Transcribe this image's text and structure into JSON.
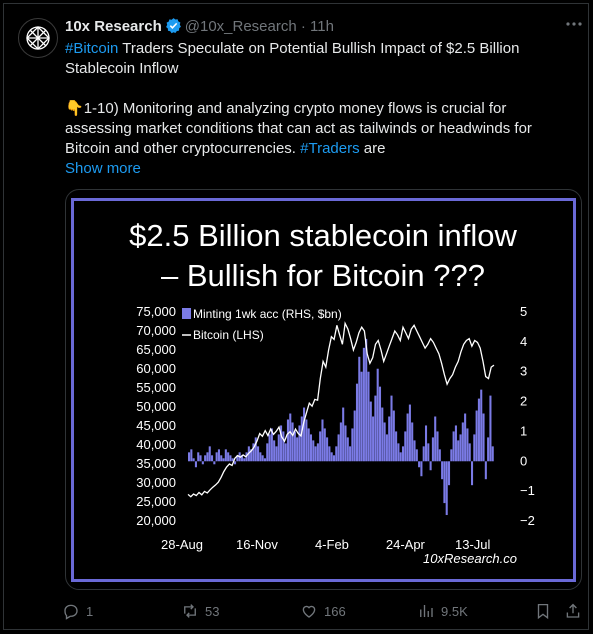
{
  "tweet": {
    "author_name": "10x Research",
    "handle": "@10x_Research",
    "separator": "·",
    "time": "11h",
    "text": {
      "line1_tag": "#Bitcoin",
      "line1_rest": " Traders Speculate on Potential Bullish Impact of $2.5 Billion Stablecoin Inflow",
      "para2_emoji": "👇",
      "para2_text": "1-10) Monitoring and analyzing crypto money flows is crucial for assessing market conditions that can act as tailwinds or headwinds for Bitcoin and other cryptocurrencies. ",
      "para2_tag": "#Traders",
      "para2_tail": " are",
      "show_more": "Show more"
    },
    "actions": {
      "replies": "1",
      "reposts": "53",
      "likes": "166",
      "views": "9.5K"
    },
    "icons": [
      "verified-badge-icon",
      "more-icon",
      "reply-icon",
      "repost-icon",
      "like-icon",
      "views-icon",
      "bookmark-icon",
      "share-icon"
    ],
    "colors": {
      "link": "#1d9bf0",
      "muted": "#71767b",
      "panel_border": "#6a69d6",
      "bar": "#7b7be6"
    }
  },
  "chart_data": {
    "type": "bar",
    "title_line1": "$2.5 Billion stablecoin inflow",
    "title_line2": "– Bullish for Bitcoin ???",
    "watermark": "10xResearch.co",
    "legend": [
      {
        "name": "Minting 1wk acc (RHS, $bn)",
        "kind": "bar",
        "color": "#7b7be6"
      },
      {
        "name": "Bitcoin (LHS)",
        "kind": "line",
        "color": "#ffffff"
      }
    ],
    "x_ticks": [
      "28-Aug",
      "16-Nov",
      "4-Feb",
      "24-Apr",
      "13-Jul"
    ],
    "left_axis": {
      "ticks": [
        "75,000",
        "70,000",
        "65,000",
        "60,000",
        "55,000",
        "50,000",
        "45,000",
        "40,000",
        "35,000",
        "30,000",
        "25,000",
        "20,000"
      ],
      "min": 20000,
      "max": 75000
    },
    "right_axis": {
      "ticks": [
        "5",
        "4",
        "3",
        "2",
        "1",
        "0",
        "−1",
        "−2"
      ],
      "min": -2,
      "max": 5
    },
    "series": [
      {
        "name": "Minting 1wk acc (RHS, $bn)",
        "values": [
          0.3,
          0.4,
          0.1,
          -0.2,
          0.3,
          0.2,
          -0.1,
          0.2,
          0.3,
          0.5,
          0.2,
          -0.1,
          0.3,
          0.4,
          0.2,
          0.1,
          0.4,
          0.3,
          0.2,
          0.1,
          -0.1,
          0.2,
          0.3,
          0.2,
          0.1,
          0.3,
          0.5,
          0.4,
          0.6,
          0.8,
          0.5,
          0.3,
          0.2,
          0.1,
          0.6,
          0.9,
          1.1,
          0.7,
          0.5,
          0.9,
          1.2,
          1.0,
          0.6,
          1.4,
          1.6,
          1.3,
          1.0,
          0.8,
          1.2,
          1.5,
          1.8,
          1.4,
          1.1,
          0.9,
          0.7,
          0.5,
          0.6,
          1.0,
          1.4,
          1.1,
          0.8,
          0.5,
          0.3,
          0.2,
          0.5,
          0.9,
          1.3,
          1.8,
          1.2,
          0.8,
          0.5,
          1.1,
          1.7,
          2.6,
          3.5,
          3.0,
          3.8,
          4.1,
          3.0,
          2.0,
          1.5,
          2.2,
          3.1,
          2.5,
          1.8,
          1.3,
          0.9,
          1.5,
          2.2,
          1.7,
          1.0,
          0.6,
          0.3,
          0.5,
          1.0,
          1.6,
          1.9,
          1.3,
          0.7,
          0.4,
          -0.2,
          -0.5,
          0.5,
          1.2,
          0.6,
          -0.3,
          0.8,
          1.5,
          1.0,
          0.4,
          -0.6,
          -1.4,
          -1.8,
          -0.8,
          0.4,
          1.0,
          1.2,
          0.7,
          0.9,
          1.3,
          1.6,
          1.1,
          0.6,
          -0.8,
          0.9,
          1.7,
          2.1,
          2.4,
          1.6,
          -0.6,
          0.8,
          2.2,
          0.5
        ]
      },
      {
        "name": "Bitcoin (LHS)",
        "values": [
          27000,
          26400,
          27100,
          26700,
          27500,
          26900,
          27800,
          27400,
          28200,
          28900,
          29500,
          30200,
          31500,
          33000,
          34200,
          35000,
          34600,
          36500,
          37200,
          36800,
          37400,
          36900,
          37800,
          38500,
          39500,
          41000,
          43000,
          42300,
          43800,
          42500,
          44200,
          42800,
          43600,
          44700,
          42100,
          41000,
          42800,
          43500,
          42500,
          44200,
          43000,
          42400,
          46000,
          48500,
          51000,
          50200,
          52000,
          51800,
          57500,
          62000,
          60500,
          65000,
          68500,
          67800,
          71500,
          69000,
          66500,
          72000,
          70500,
          68000,
          65000,
          67000,
          69500,
          71000,
          70000,
          64000,
          61500,
          63000,
          66500,
          67500,
          65000,
          62000,
          64000,
          66000,
          68000,
          70000,
          69000,
          67500,
          71000,
          69500,
          68000,
          70500,
          71500,
          70000,
          68500,
          67000,
          65500,
          66500,
          68000,
          67000,
          65500,
          64000,
          61500,
          58500,
          56000,
          57500,
          58500,
          60500,
          62000,
          64500,
          66500,
          67500,
          68000,
          66000,
          67500,
          67000,
          65500,
          62000,
          58000,
          57500,
          60500,
          61000
        ],
        "x_start_date": "28-Aug"
      }
    ]
  }
}
